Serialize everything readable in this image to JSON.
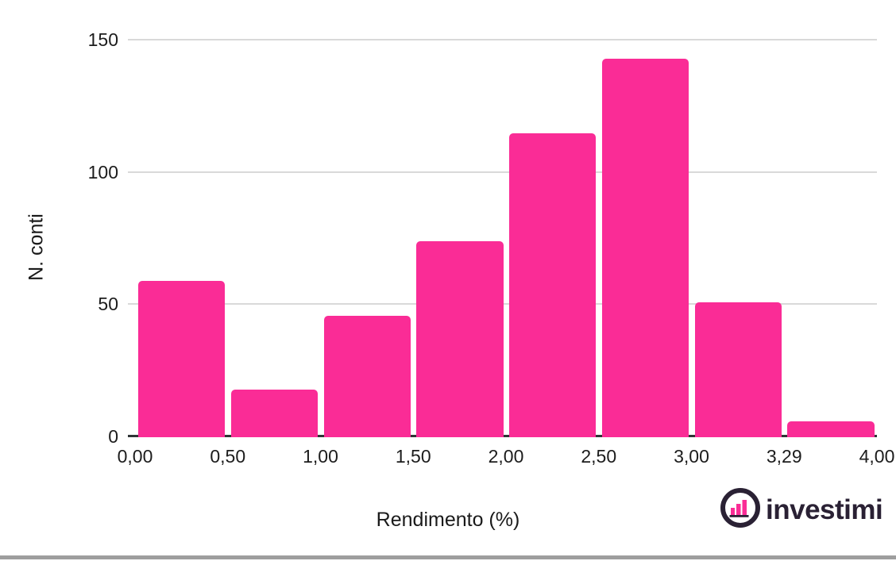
{
  "chart_data": {
    "type": "bar",
    "title": "",
    "xlabel": "Rendimento (%)",
    "ylabel": "N. conti",
    "bin_edge_labels": [
      "0,00",
      "0,50",
      "1,00",
      "1,50",
      "2,00",
      "2,50",
      "3,00",
      "3,29",
      "4,00"
    ],
    "values": [
      59,
      18,
      46,
      74,
      115,
      143,
      51,
      6
    ],
    "yticks": [
      0,
      50,
      100,
      150
    ],
    "ylim": [
      0,
      150
    ],
    "grid": true,
    "legend": "none",
    "bar_color": "#fa2c96"
  },
  "branding": {
    "logo_text": "investimi",
    "logo_icon": "bar-chart-logo-icon",
    "logo_dark_color": "#2a2134",
    "logo_accent_color": "#fa2c96"
  },
  "colors": {
    "bar": "#fa2c96",
    "gridline": "#d9d9d9",
    "axis_line": "#2f3436",
    "text": "#1c1c1c",
    "bottom_divider": "#9e9e9e",
    "background": "#ffffff"
  }
}
